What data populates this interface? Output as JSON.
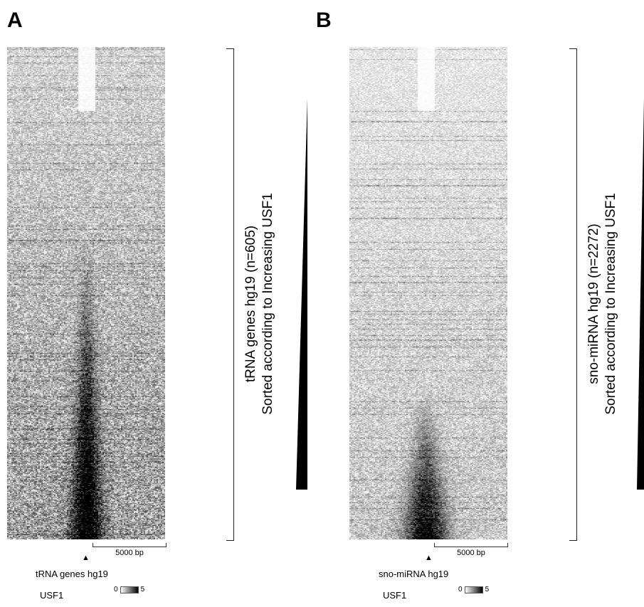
{
  "chart_data": [
    {
      "type": "heatmap",
      "panel": "A",
      "row_label": "tRNA genes hg19 (n=605)",
      "sort_label": "Sorted according to Increasing USF1",
      "region_label": "tRNA genes hg19",
      "track": "USF1",
      "scale_bar": "5000 bp",
      "colorbar": {
        "min": 0,
        "max": 5,
        "colors": [
          "#ffffff",
          "#000000"
        ]
      },
      "n_rows": 605
    },
    {
      "type": "heatmap",
      "panel": "B",
      "row_label": "sno-miRNA hg19 (n=2272)",
      "sort_label": "Sorted according to Increasing USF1",
      "region_label": "sno-miRNA hg19",
      "track": "USF1",
      "scale_bar": "5000 bp",
      "colorbar": {
        "min": 0,
        "max": 5,
        "colors": [
          "#ffffff",
          "#000000"
        ]
      },
      "n_rows": 2272
    }
  ],
  "tss_marker": "▲"
}
